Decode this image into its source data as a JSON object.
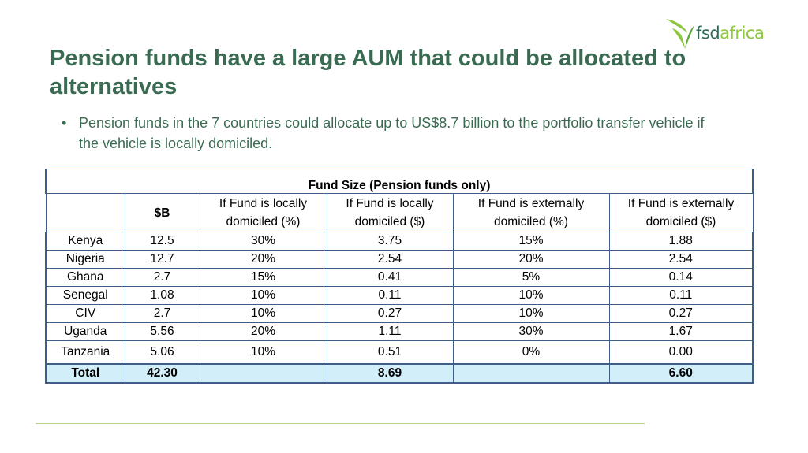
{
  "logo": {
    "text_fsd": "fsd",
    "text_africa": "africa",
    "leaf_color": "#8dc63f"
  },
  "slide": {
    "title": "Pension funds have a large AUM that could be allocated to alternatives",
    "bullet": "Pension funds in the 7 countries could allocate up to US$8.7 billion to the portfolio transfer vehicle if the vehicle is locally domiciled."
  },
  "table": {
    "caption": "Fund Size (Pension funds only)",
    "headers": [
      "",
      "$B",
      "If Fund is locally domiciled (%)",
      "If Fund is locally domiciled ($)",
      "If Fund is externally domiciled (%)",
      "If Fund is externally domiciled ($)"
    ],
    "rows": [
      [
        "Kenya",
        "12.5",
        "30%",
        "3.75",
        "15%",
        "1.88"
      ],
      [
        "Nigeria",
        "12.7",
        "20%",
        "2.54",
        "20%",
        "2.54"
      ],
      [
        "Ghana",
        "2.7",
        "15%",
        "0.41",
        "5%",
        "0.14"
      ],
      [
        "Senegal",
        "1.08",
        "10%",
        "0.11",
        "10%",
        "0.11"
      ],
      [
        "CIV",
        "2.7",
        "10%",
        "0.27",
        "10%",
        "0.27"
      ],
      [
        "Uganda",
        "5.56",
        "20%",
        "1.11",
        "30%",
        "1.67"
      ],
      [
        "Tanzania",
        "5.06",
        "10%",
        "0.51",
        "0%",
        "0.00"
      ]
    ],
    "total": [
      "Total",
      "42.30",
      "",
      "8.69",
      "",
      "6.60"
    ]
  },
  "colors": {
    "title": "#3a6b52",
    "table_border": "#3e5e86",
    "total_fill": "#d2eef9",
    "rule": "#b9cf8a"
  }
}
